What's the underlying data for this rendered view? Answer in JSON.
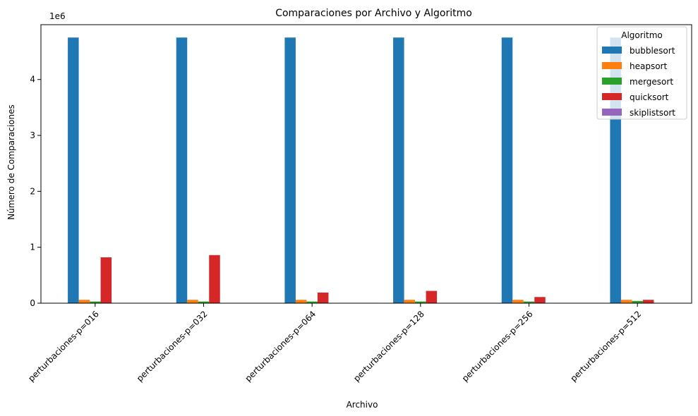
{
  "chart_data": {
    "type": "bar",
    "title": "Comparaciones por Archivo y Algoritmo",
    "xlabel": "Archivo",
    "ylabel": "Número de Comparaciones",
    "y_multiplier_label": "1e6",
    "ylim": [
      0,
      4.98
    ],
    "yticks": [
      0,
      1,
      2,
      3,
      4
    ],
    "yticks_labels": [
      "0",
      "1",
      "2",
      "3",
      "4"
    ],
    "grid": false,
    "legend_position": "top-right",
    "legend_title": "Algoritmo",
    "categories": [
      "perturbaciones-p=016",
      "perturbaciones-p=032",
      "perturbaciones-p=064",
      "perturbaciones-p=128",
      "perturbaciones-p=256",
      "perturbaciones-p=512"
    ],
    "series": [
      {
        "name": "bubblesort",
        "color": "#1f77b4",
        "values": [
          4.75,
          4.75,
          4.75,
          4.75,
          4.75,
          4.75
        ]
      },
      {
        "name": "heapsort",
        "color": "#ff7f0e",
        "values": [
          0.06,
          0.06,
          0.06,
          0.06,
          0.06,
          0.06
        ]
      },
      {
        "name": "mergesort",
        "color": "#2ca02c",
        "values": [
          0.03,
          0.03,
          0.03,
          0.03,
          0.03,
          0.04
        ]
      },
      {
        "name": "quicksort",
        "color": "#d62728",
        "values": [
          0.82,
          0.86,
          0.19,
          0.22,
          0.11,
          0.06
        ]
      },
      {
        "name": "skiplistsort",
        "color": "#9467bd",
        "values": [
          0.0,
          0.0,
          0.0,
          0.0,
          0.0,
          0.0
        ]
      }
    ]
  }
}
